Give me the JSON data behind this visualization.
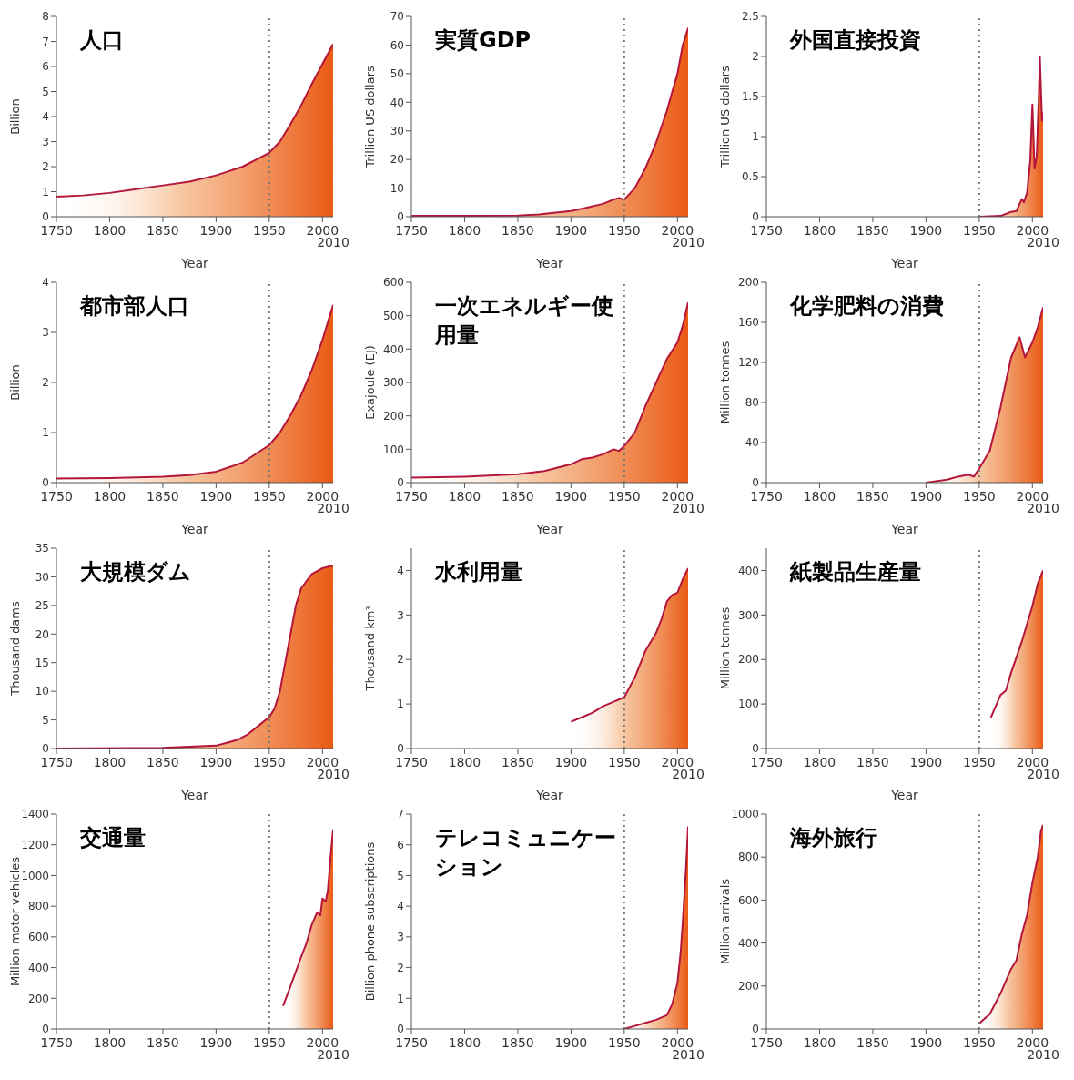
{
  "chart_data": [
    {
      "type": "area",
      "title": "人口",
      "ylabel": "Billion",
      "xlabel": "Year",
      "xlim": [
        1750,
        2010
      ],
      "xticks": [
        1750,
        1800,
        1850,
        1900,
        1950,
        2000
      ],
      "annotations": [
        "2010"
      ],
      "ylim": [
        0,
        8
      ],
      "yticks": [
        0,
        1,
        2,
        3,
        4,
        5,
        6,
        7,
        8
      ],
      "ref_lines": [
        {
          "axis": "x",
          "value": 1950,
          "line_style": "dotted",
          "color": "#777777"
        }
      ],
      "series": [
        {
          "color": "#b3163a",
          "x": [
            1750,
            1775,
            1800,
            1825,
            1850,
            1875,
            1900,
            1925,
            1950,
            1960,
            1970,
            1980,
            1990,
            2000,
            2010
          ],
          "values": [
            0.8,
            0.85,
            0.95,
            1.1,
            1.25,
            1.4,
            1.65,
            2.0,
            2.55,
            3.0,
            3.7,
            4.45,
            5.3,
            6.1,
            6.9
          ]
        }
      ]
    },
    {
      "type": "area",
      "title": "実質GDP",
      "ylabel": "Trillion US dollars",
      "xlabel": "Year",
      "xlim": [
        1750,
        2010
      ],
      "xticks": [
        1750,
        1800,
        1850,
        1900,
        1950,
        2000
      ],
      "annotations": [
        "2010"
      ],
      "ylim": [
        0,
        70
      ],
      "yticks": [
        0,
        10,
        20,
        30,
        40,
        50,
        60,
        70
      ],
      "ref_lines": [
        {
          "axis": "x",
          "value": 1950,
          "line_style": "dotted",
          "color": "#777777"
        }
      ],
      "series": [
        {
          "color": "#b3163a",
          "x": [
            1750,
            1800,
            1850,
            1870,
            1900,
            1913,
            1930,
            1940,
            1945,
            1950,
            1960,
            1970,
            1980,
            1990,
            2000,
            2005,
            2010
          ],
          "values": [
            0.3,
            0.3,
            0.4,
            0.8,
            2,
            3,
            4.5,
            6,
            6.5,
            6,
            10,
            17,
            26,
            37,
            50,
            60,
            66
          ]
        }
      ]
    },
    {
      "type": "area",
      "title": "外国直接投資",
      "ylabel": "Trillion US dollars",
      "xlabel": "Year",
      "xlim": [
        1750,
        2010
      ],
      "xticks": [
        1750,
        1800,
        1850,
        1900,
        1950,
        2000
      ],
      "annotations": [
        "2010"
      ],
      "ylim": [
        0,
        2.5
      ],
      "yticks": [
        0,
        0.5,
        1,
        1.5,
        2,
        2.5
      ],
      "ref_lines": [
        {
          "axis": "x",
          "value": 1950,
          "line_style": "dotted",
          "color": "#777777"
        }
      ],
      "series": [
        {
          "color": "#b3163a",
          "x": [
            1950,
            1970,
            1980,
            1985,
            1990,
            1992,
            1995,
            1998,
            2000,
            2002,
            2004,
            2006,
            2007,
            2009,
            2010
          ],
          "values": [
            0,
            0.01,
            0.06,
            0.07,
            0.22,
            0.18,
            0.3,
            0.7,
            1.4,
            0.6,
            0.75,
            1.5,
            2.0,
            1.2,
            1.3
          ]
        }
      ]
    },
    {
      "type": "area",
      "title": "都市部人口",
      "ylabel": "Billion",
      "xlabel": "Year",
      "xlim": [
        1750,
        2010
      ],
      "xticks": [
        1750,
        1800,
        1850,
        1900,
        1950,
        2000
      ],
      "annotations": [
        "2010"
      ],
      "ylim": [
        0,
        4
      ],
      "yticks": [
        0,
        1,
        2,
        3,
        4
      ],
      "ref_lines": [
        {
          "axis": "x",
          "value": 1950,
          "line_style": "dotted",
          "color": "#777777"
        }
      ],
      "series": [
        {
          "color": "#b3163a",
          "x": [
            1750,
            1800,
            1850,
            1875,
            1900,
            1925,
            1950,
            1960,
            1970,
            1980,
            1990,
            2000,
            2010
          ],
          "values": [
            0.08,
            0.09,
            0.12,
            0.15,
            0.22,
            0.4,
            0.75,
            1.0,
            1.35,
            1.75,
            2.25,
            2.85,
            3.55
          ]
        }
      ]
    },
    {
      "type": "area",
      "title": "一次エネルギー使用量",
      "ylabel": "Exajoule (EJ)",
      "xlabel": "Year",
      "xlim": [
        1750,
        2010
      ],
      "xticks": [
        1750,
        1800,
        1850,
        1900,
        1950,
        2000
      ],
      "annotations": [
        "2010"
      ],
      "ylim": [
        0,
        600
      ],
      "yticks": [
        0,
        100,
        200,
        300,
        400,
        500,
        600
      ],
      "ref_lines": [
        {
          "axis": "x",
          "value": 1950,
          "line_style": "dotted",
          "color": "#777777"
        }
      ],
      "series": [
        {
          "color": "#b3163a",
          "x": [
            1750,
            1800,
            1850,
            1875,
            1900,
            1910,
            1920,
            1930,
            1940,
            1945,
            1950,
            1960,
            1970,
            1980,
            1990,
            2000,
            2005,
            2010
          ],
          "values": [
            15,
            18,
            25,
            35,
            55,
            70,
            75,
            85,
            100,
            95,
            110,
            150,
            230,
            300,
            370,
            420,
            470,
            540
          ]
        }
      ]
    },
    {
      "type": "area",
      "title": "化学肥料の消費",
      "ylabel": "Million tonnes",
      "xlabel": "Year",
      "xlim": [
        1750,
        2010
      ],
      "xticks": [
        1750,
        1800,
        1850,
        1900,
        1950,
        2000
      ],
      "annotations": [
        "2010"
      ],
      "ylim": [
        0,
        200
      ],
      "yticks": [
        0,
        40,
        80,
        120,
        160,
        200
      ],
      "ref_lines": [
        {
          "axis": "x",
          "value": 1950,
          "line_style": "dotted",
          "color": "#777777"
        }
      ],
      "series": [
        {
          "color": "#b3163a",
          "x": [
            1900,
            1920,
            1930,
            1940,
            1945,
            1950,
            1960,
            1970,
            1975,
            1980,
            1988,
            1993,
            2000,
            2005,
            2010
          ],
          "values": [
            0,
            3,
            6,
            8,
            6,
            14,
            32,
            75,
            100,
            125,
            145,
            125,
            140,
            155,
            175
          ]
        }
      ]
    },
    {
      "type": "area",
      "title": "大規模ダム",
      "ylabel": "Thousand dams",
      "xlabel": "Year",
      "xlim": [
        1750,
        2010
      ],
      "xticks": [
        1750,
        1800,
        1850,
        1900,
        1950,
        2000
      ],
      "annotations": [
        "2010"
      ],
      "ylim": [
        0,
        35
      ],
      "yticks": [
        0,
        5,
        10,
        15,
        20,
        25,
        30,
        35
      ],
      "ref_lines": [
        {
          "axis": "x",
          "value": 1950,
          "line_style": "dotted",
          "color": "#777777"
        }
      ],
      "series": [
        {
          "color": "#b3163a",
          "x": [
            1750,
            1850,
            1900,
            1920,
            1930,
            1940,
            1950,
            1955,
            1960,
            1965,
            1970,
            1975,
            1980,
            1990,
            2000,
            2010
          ],
          "values": [
            0,
            0.1,
            0.5,
            1.5,
            2.5,
            4,
            5.5,
            7,
            10,
            15,
            20,
            25,
            28,
            30.5,
            31.5,
            32
          ]
        }
      ]
    },
    {
      "type": "area",
      "title": "水利用量",
      "ylabel": "Thousand km³",
      "xlabel": "Year",
      "xlim": [
        1750,
        2010
      ],
      "xticks": [
        1750,
        1800,
        1850,
        1900,
        1950,
        2000
      ],
      "annotations": [
        "2010"
      ],
      "ylim": [
        0,
        4.5
      ],
      "yticks": [
        0,
        1,
        2,
        3,
        4
      ],
      "ref_lines": [
        {
          "axis": "x",
          "value": 1950,
          "line_style": "dotted",
          "color": "#777777"
        }
      ],
      "series": [
        {
          "color": "#b3163a",
          "x": [
            1900,
            1910,
            1920,
            1930,
            1940,
            1950,
            1960,
            1970,
            1980,
            1985,
            1990,
            1995,
            2000,
            2005,
            2010
          ],
          "values": [
            0.6,
            0.7,
            0.8,
            0.95,
            1.05,
            1.15,
            1.6,
            2.2,
            2.6,
            2.9,
            3.3,
            3.45,
            3.5,
            3.8,
            4.05
          ]
        }
      ]
    },
    {
      "type": "area",
      "title": "紙製品生産量",
      "ylabel": "Million tonnes",
      "xlabel": "Year",
      "xlim": [
        1750,
        2010
      ],
      "xticks": [
        1750,
        1800,
        1850,
        1900,
        1950,
        2000
      ],
      "annotations": [
        "2010"
      ],
      "ylim": [
        0,
        450
      ],
      "yticks": [
        0,
        100,
        200,
        300,
        400
      ],
      "ref_lines": [
        {
          "axis": "x",
          "value": 1950,
          "line_style": "dotted",
          "color": "#777777"
        }
      ],
      "series": [
        {
          "color": "#b3163a",
          "x": [
            1961,
            1970,
            1975,
            1980,
            1990,
            2000,
            2005,
            2010
          ],
          "values": [
            70,
            120,
            130,
            170,
            240,
            320,
            370,
            400
          ]
        }
      ]
    },
    {
      "type": "area",
      "title": "交通量",
      "ylabel": "Million motor vehicles",
      "xlim": [
        1750,
        2010
      ],
      "xticks": [
        1750,
        1800,
        1850,
        1900,
        1950,
        2000
      ],
      "annotations": [
        "2010"
      ],
      "ylim": [
        0,
        1400
      ],
      "yticks": [
        0,
        200,
        400,
        600,
        800,
        1000,
        1200,
        1400
      ],
      "ref_lines": [
        {
          "axis": "x",
          "value": 1950,
          "line_style": "dotted",
          "color": "#777777"
        }
      ],
      "series": [
        {
          "color": "#b3163a",
          "x": [
            1963,
            1970,
            1980,
            1985,
            1990,
            1995,
            1998,
            2000,
            2003,
            2005,
            2008,
            2010
          ],
          "values": [
            150,
            280,
            470,
            560,
            680,
            760,
            740,
            850,
            830,
            900,
            1150,
            1300
          ]
        }
      ]
    },
    {
      "type": "area",
      "title": "テレコミュニケーション",
      "ylabel": "Billion phone subscriptions",
      "xlim": [
        1750,
        2010
      ],
      "xticks": [
        1750,
        1800,
        1850,
        1900,
        1950,
        2000
      ],
      "annotations": [
        "2010"
      ],
      "ylim": [
        0,
        7
      ],
      "yticks": [
        0,
        1,
        2,
        3,
        4,
        5,
        6,
        7
      ],
      "ref_lines": [
        {
          "axis": "x",
          "value": 1950,
          "line_style": "dotted",
          "color": "#777777"
        }
      ],
      "series": [
        {
          "color": "#b3163a",
          "x": [
            1950,
            1960,
            1970,
            1980,
            1990,
            1995,
            2000,
            2003,
            2005,
            2008,
            2010
          ],
          "values": [
            0,
            0.1,
            0.2,
            0.3,
            0.45,
            0.8,
            1.5,
            2.5,
            3.5,
            5.2,
            6.6
          ]
        }
      ]
    },
    {
      "type": "area",
      "title": "海外旅行",
      "ylabel": "Million arrivals",
      "xlim": [
        1750,
        2010
      ],
      "xticks": [
        1750,
        1800,
        1850,
        1900,
        1950,
        2000
      ],
      "annotations": [
        "2010"
      ],
      "ylim": [
        0,
        1000
      ],
      "yticks": [
        0,
        200,
        400,
        600,
        800,
        1000
      ],
      "ref_lines": [
        {
          "axis": "x",
          "value": 1950,
          "line_style": "dotted",
          "color": "#777777"
        }
      ],
      "series": [
        {
          "color": "#b3163a",
          "x": [
            1950,
            1960,
            1970,
            1980,
            1985,
            1990,
            1995,
            2000,
            2005,
            2008,
            2010
          ],
          "values": [
            25,
            70,
            165,
            280,
            320,
            440,
            530,
            680,
            800,
            920,
            950
          ]
        }
      ]
    }
  ]
}
